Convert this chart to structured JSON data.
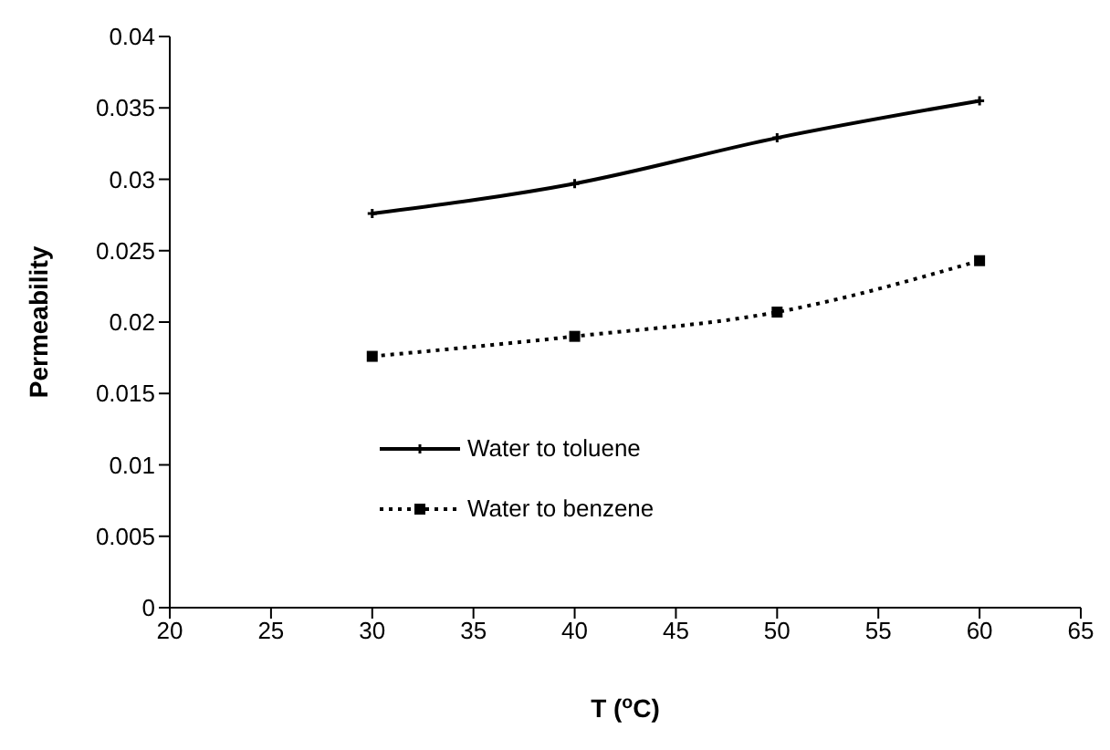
{
  "chart_data": {
    "type": "line",
    "xlabel": "T ($^{o}$C)",
    "ylabel": "Permeability",
    "x": [
      30,
      40,
      50,
      60
    ],
    "series": [
      {
        "name": "Water to toluene",
        "color": "#000000",
        "values": [
          0.0276,
          0.0297,
          0.0329,
          0.0355
        ],
        "marker": "cross",
        "line_style": "solid"
      },
      {
        "name": "Water to benzene",
        "color": "#000000",
        "values": [
          0.0176,
          0.019,
          0.0207,
          0.0243
        ],
        "marker": "square",
        "line_style": "dotted"
      }
    ],
    "xlim": [
      20,
      65
    ],
    "xticks": [
      20,
      25,
      30,
      35,
      40,
      45,
      50,
      55,
      60,
      65
    ],
    "ylim": [
      0,
      0.04
    ],
    "yticks": [
      0,
      0.005,
      0.01,
      0.015,
      0.02,
      0.025,
      0.03,
      0.035,
      0.04
    ],
    "grid": false,
    "legend": "bottom left"
  }
}
